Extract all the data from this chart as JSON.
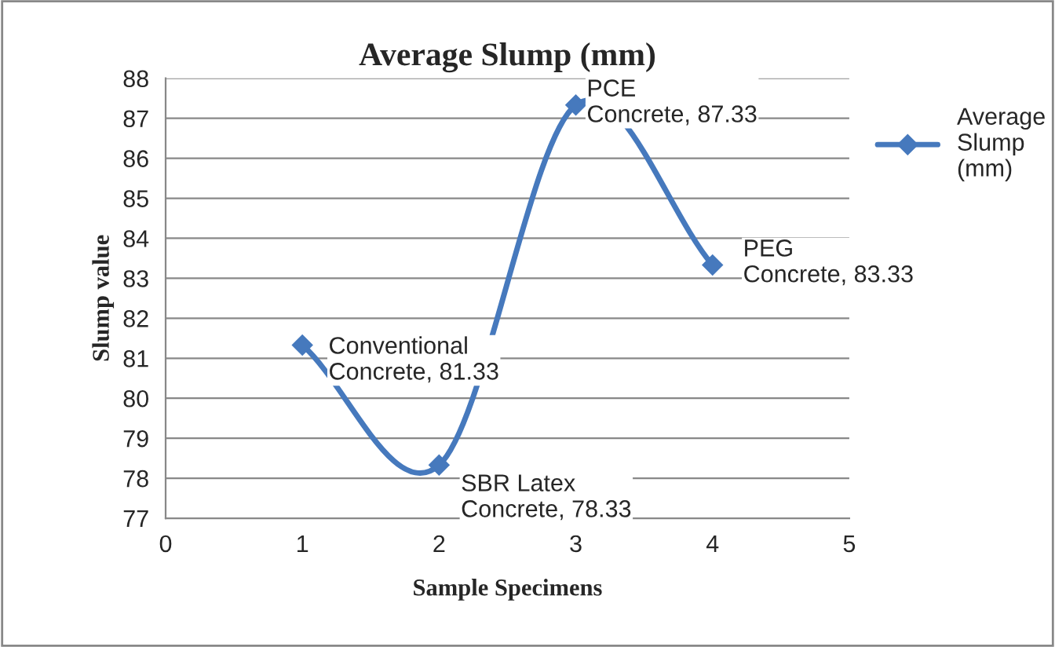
{
  "chart_data": {
    "type": "line",
    "title": "Average Slump (mm)",
    "xlabel": "Sample Specimens",
    "ylabel": "Slump value",
    "x": [
      1,
      2,
      3,
      4
    ],
    "series": [
      {
        "name": "Average Slump (mm)",
        "color": "#4679bd",
        "values": [
          81.33,
          78.33,
          87.33,
          83.33
        ]
      }
    ],
    "xlim": [
      0,
      5
    ],
    "xticks": [
      0,
      1,
      2,
      3,
      4,
      5
    ],
    "ylim": [
      77,
      88
    ],
    "yticks": [
      77,
      78,
      79,
      80,
      81,
      82,
      83,
      84,
      85,
      86,
      87,
      88
    ],
    "grid": "y",
    "legend": "right",
    "marker": "diamond",
    "line_style": "solid",
    "annotations": [
      {
        "text": "Conventional\nConcrete, 81.33",
        "x": 1,
        "y": 81.33
      },
      {
        "text": "SBR Latex\nConcrete, 78.33",
        "x": 2,
        "y": 78.33
      },
      {
        "text": "PCE\nConcrete, 87.33",
        "x": 3,
        "y": 87.33
      },
      {
        "text": "PEG\nConcrete, 83.33",
        "x": 4,
        "y": 83.33
      }
    ]
  }
}
